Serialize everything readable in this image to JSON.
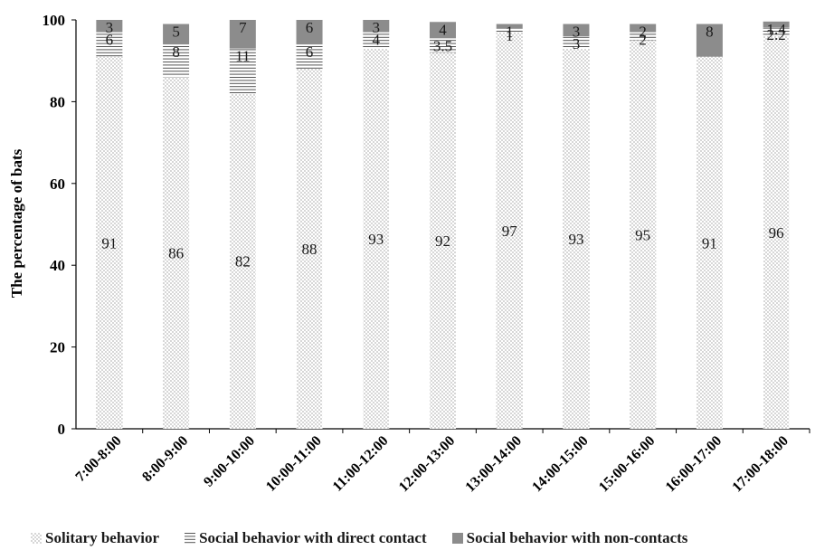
{
  "chart_data": {
    "type": "bar",
    "stacked": true,
    "title": "",
    "xlabel": "",
    "ylabel": "The percentage of bats",
    "ylim": [
      0,
      100
    ],
    "yticks": [
      0,
      20,
      40,
      60,
      80,
      100
    ],
    "grid": false,
    "legend_position": "bottom",
    "categories": [
      "7:00-8:00",
      "8:00-9:00",
      "9:00-10:00",
      "10:00-11:00",
      "11:00-12:00",
      "12:00-13:00",
      "13:00-14:00",
      "14:00-15:00",
      "15:00-16:00",
      "16:00-17:00",
      "17:00-18:00"
    ],
    "series": [
      {
        "name": "Solitary behavior",
        "pattern": "dots",
        "values": [
          91,
          86,
          82,
          88,
          93,
          92,
          97,
          93,
          95,
          91,
          96
        ],
        "labels": [
          "91",
          "86",
          "82",
          "88",
          "93",
          "92",
          "97",
          "93",
          "95",
          "91",
          "96"
        ]
      },
      {
        "name": "Social behavior with direct contact",
        "pattern": "lines",
        "values": [
          6,
          8,
          11,
          6,
          4,
          3.5,
          1,
          3,
          2,
          0,
          2.2
        ],
        "labels": [
          "6",
          "8",
          "11",
          "6",
          "4",
          "3.5",
          "1",
          "3",
          "2",
          "",
          "2.2"
        ]
      },
      {
        "name": "Social behavior with non-contacts",
        "pattern": "solid",
        "color": "#8c8c8c",
        "values": [
          3,
          5,
          7,
          6,
          3,
          4,
          1,
          3,
          2,
          8,
          1.4
        ],
        "labels": [
          "3",
          "5",
          "7",
          "6",
          "3",
          "4",
          "1",
          "3",
          "2",
          "8",
          "1.4"
        ]
      }
    ]
  }
}
